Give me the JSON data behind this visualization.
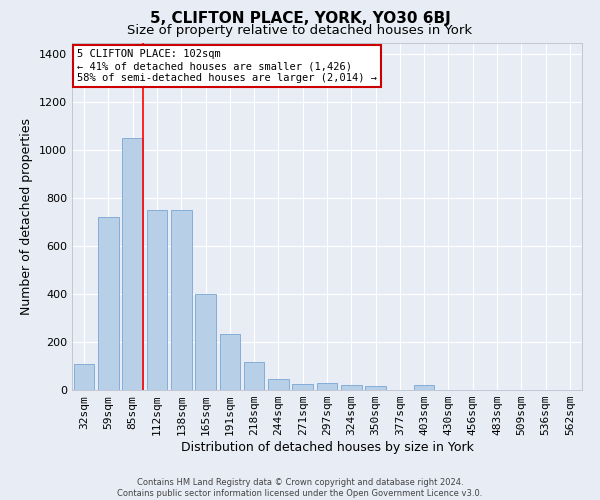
{
  "title": "5, CLIFTON PLACE, YORK, YO30 6BJ",
  "subtitle": "Size of property relative to detached houses in York",
  "xlabel": "Distribution of detached houses by size in York",
  "ylabel": "Number of detached properties",
  "categories": [
    "32sqm",
    "59sqm",
    "85sqm",
    "112sqm",
    "138sqm",
    "165sqm",
    "191sqm",
    "218sqm",
    "244sqm",
    "271sqm",
    "297sqm",
    "324sqm",
    "350sqm",
    "377sqm",
    "403sqm",
    "430sqm",
    "456sqm",
    "483sqm",
    "509sqm",
    "536sqm",
    "562sqm"
  ],
  "values": [
    110,
    720,
    1050,
    750,
    750,
    400,
    235,
    115,
    45,
    25,
    28,
    20,
    15,
    0,
    20,
    0,
    0,
    0,
    0,
    0,
    0
  ],
  "bar_color": "#b8cfe8",
  "bar_edge_color": "#7aa6d4",
  "background_color": "#e8ecf5",
  "grid_color": "#ffffff",
  "red_line_x": 2.43,
  "red_line_label": "5 CLIFTON PLACE: 102sqm",
  "annotation_line1": "← 41% of detached houses are smaller (1,426)",
  "annotation_line2": "58% of semi-detached houses are larger (2,014) →",
  "annotation_box_color": "#ffffff",
  "annotation_box_edge": "#cc0000",
  "ylim": [
    0,
    1450
  ],
  "yticks": [
    0,
    200,
    400,
    600,
    800,
    1000,
    1200,
    1400
  ],
  "footer_line1": "Contains HM Land Registry data © Crown copyright and database right 2024.",
  "footer_line2": "Contains public sector information licensed under the Open Government Licence v3.0.",
  "title_fontsize": 11,
  "subtitle_fontsize": 9.5,
  "xlabel_fontsize": 9,
  "ylabel_fontsize": 9,
  "tick_fontsize": 8,
  "annotation_fontsize": 7.5,
  "footer_fontsize": 6
}
